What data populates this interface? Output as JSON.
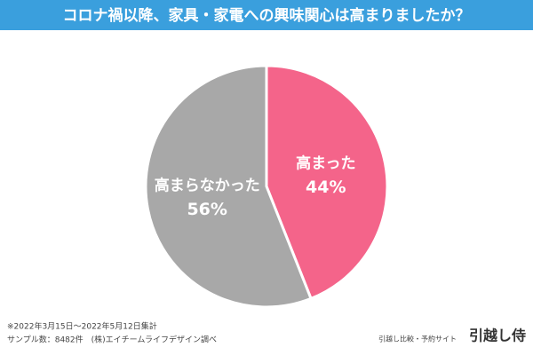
{
  "chart_data": {
    "type": "pie",
    "title": "コロナ禍以降、家具・家電への興味関心は高まりましたか？",
    "categories": [
      "高まった",
      "高まらなかった"
    ],
    "values": [
      44,
      56
    ],
    "value_labels": [
      "44%",
      "56%"
    ],
    "colors": [
      "#f4648a",
      "#a8a8a8"
    ],
    "notes": [
      "※2022年3月15日～2022年5月12日集計",
      "サンプル数：8482件　(株)エイチームライフデザイン調べ"
    ],
    "brand_tagline": "引越し比較・予約サイト",
    "brand": "引越し侍"
  }
}
